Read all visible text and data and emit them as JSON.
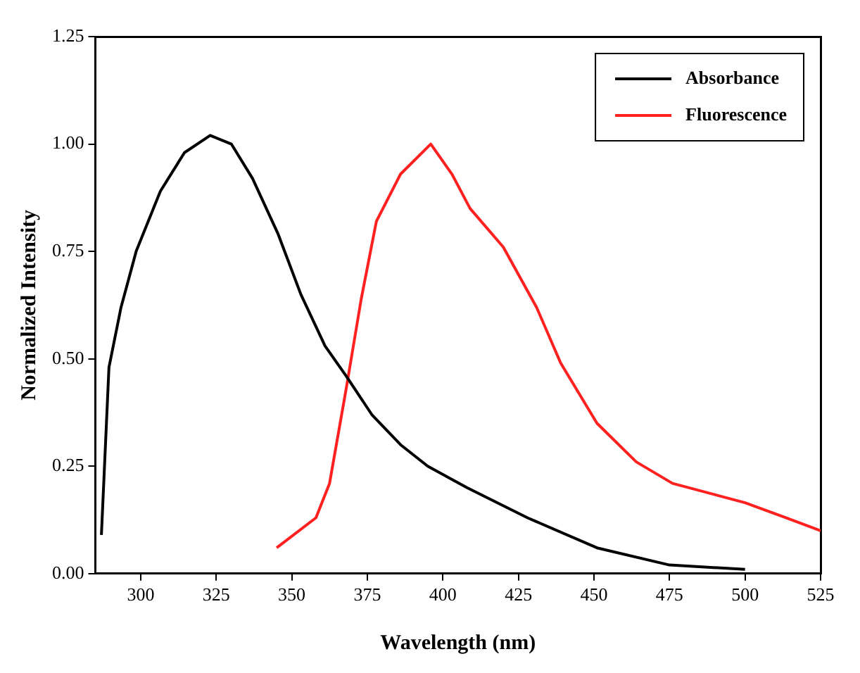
{
  "chart_data": {
    "type": "line",
    "xlabel": "Wavelength (nm)",
    "ylabel": "Normalized Intensity",
    "xlim": [
      285,
      525
    ],
    "xticks": [
      300,
      325,
      350,
      375,
      400,
      425,
      450,
      475,
      500,
      525
    ],
    "ylim": [
      0,
      1.25
    ],
    "yticks": [
      {
        "value": 0,
        "label": "0.00"
      },
      {
        "value": 0.25,
        "label": "0.25"
      },
      {
        "value": 0.5,
        "label": "0.50"
      },
      {
        "value": 0.75,
        "label": "0.75"
      },
      {
        "value": 1,
        "label": "1.00"
      },
      {
        "value": 1.25,
        "label": "1.25"
      }
    ],
    "grid": false,
    "legend": "top right",
    "marker": "none",
    "line_style": "solid",
    "series": [
      {
        "name": "Absorbance",
        "color": "#000000",
        "x": [
          287,
          289.5,
          293.5,
          298.5,
          306.5,
          314.5,
          323,
          330,
          337,
          345.5,
          353,
          361,
          368,
          376.5,
          386,
          395,
          408,
          428,
          451,
          475,
          500
        ],
        "values": [
          0.09,
          0.48,
          0.62,
          0.75,
          0.89,
          0.98,
          1.02,
          1.0,
          0.92,
          0.79,
          0.65,
          0.53,
          0.46,
          0.37,
          0.3,
          0.25,
          0.2,
          0.13,
          0.06,
          0.02,
          0.01
        ]
      },
      {
        "name": "Fluorescence",
        "color": "#ff2020",
        "x": [
          345,
          358,
          362.5,
          368,
          373,
          378,
          386,
          396,
          403,
          409,
          420,
          431,
          439,
          451,
          464,
          476,
          500,
          513.5,
          525
        ],
        "values": [
          0.06,
          0.13,
          0.21,
          0.43,
          0.64,
          0.82,
          0.93,
          1.0,
          0.93,
          0.85,
          0.76,
          0.62,
          0.49,
          0.35,
          0.26,
          0.21,
          0.165,
          0.13,
          0.1
        ]
      }
    ]
  }
}
